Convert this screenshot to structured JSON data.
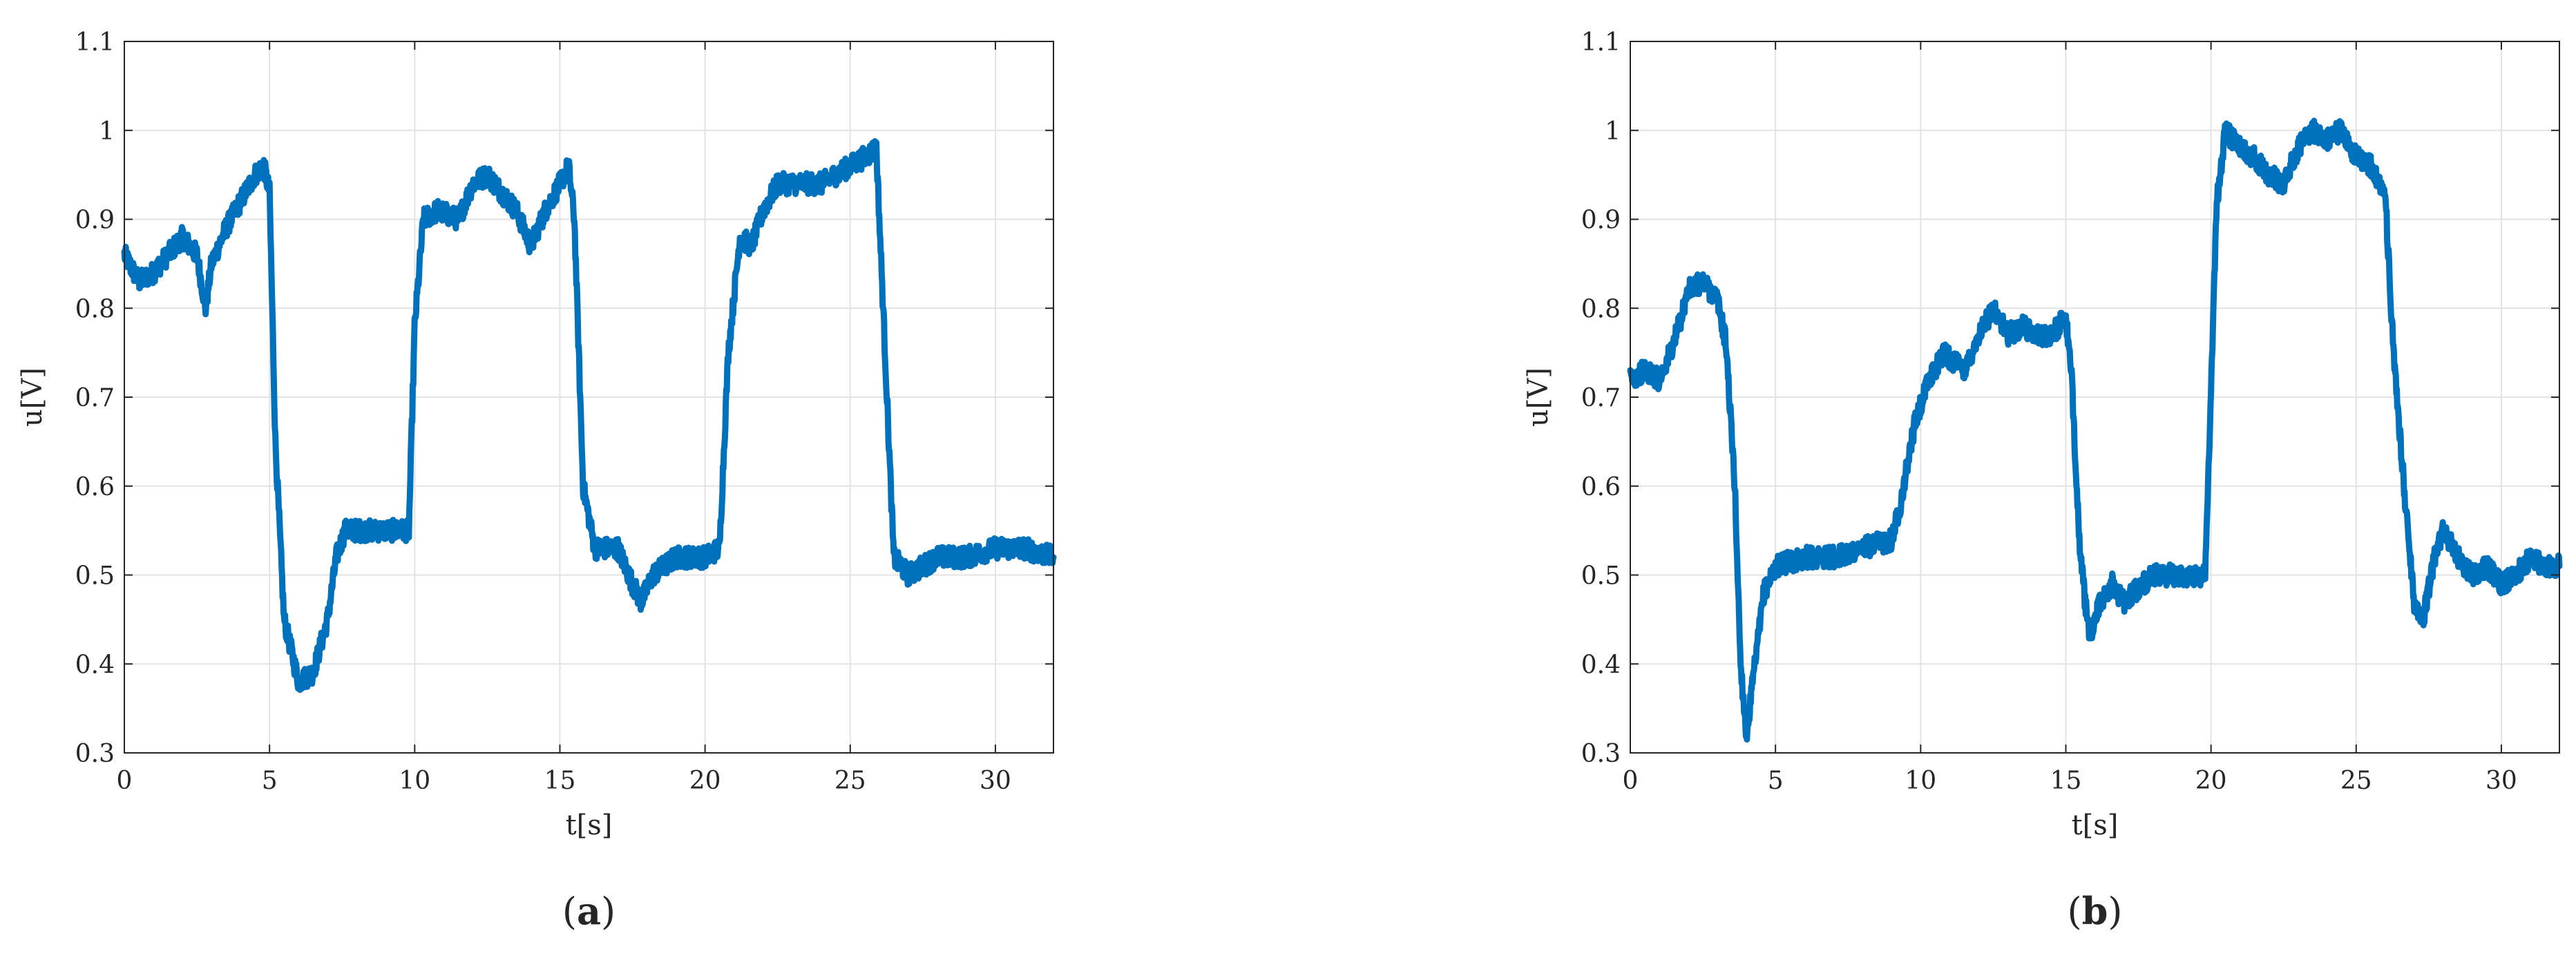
{
  "chart_data": [
    {
      "type": "line",
      "panel_label": "a",
      "title": "",
      "xlabel": "t[s]",
      "ylabel": "u[V]",
      "xlim": [
        0,
        32
      ],
      "ylim": [
        0.3,
        1.1
      ],
      "xticks": [
        "0",
        "5",
        "10",
        "15",
        "20",
        "25",
        "30"
      ],
      "yticks": [
        "0.3",
        "0.4",
        "0.5",
        "0.6",
        "0.7",
        "0.8",
        "0.9",
        "1",
        "1.1"
      ],
      "grid": true,
      "line_color": "#0072BD",
      "series": [
        {
          "x": [
            0,
            0.5,
            1,
            1.5,
            2,
            2.5,
            2.8,
            3,
            3.5,
            4,
            4.5,
            4.8,
            5,
            5.2,
            5.5,
            6,
            6.5,
            7,
            7.3,
            7.6,
            8,
            9,
            9.8,
            10,
            10.3,
            10.8,
            11.5,
            12,
            12.5,
            13,
            13.5,
            14,
            14.5,
            15,
            15.3,
            15.5,
            15.8,
            16.2,
            17,
            17.5,
            17.8,
            18.2,
            19,
            20,
            20.5,
            20.8,
            21.2,
            21.6,
            22,
            22.5,
            23,
            24,
            25,
            25.5,
            25.9,
            26.2,
            26.5,
            27,
            27.5,
            28,
            29,
            30,
            31,
            32
          ],
          "values": [
            0.86,
            0.83,
            0.84,
            0.86,
            0.88,
            0.86,
            0.8,
            0.85,
            0.89,
            0.92,
            0.95,
            0.96,
            0.93,
            0.65,
            0.45,
            0.38,
            0.39,
            0.45,
            0.52,
            0.55,
            0.55,
            0.55,
            0.55,
            0.78,
            0.9,
            0.91,
            0.9,
            0.94,
            0.95,
            0.93,
            0.91,
            0.87,
            0.91,
            0.94,
            0.96,
            0.9,
            0.6,
            0.53,
            0.53,
            0.49,
            0.47,
            0.5,
            0.52,
            0.52,
            0.53,
            0.75,
            0.88,
            0.87,
            0.91,
            0.94,
            0.94,
            0.94,
            0.96,
            0.97,
            0.98,
            0.75,
            0.52,
            0.5,
            0.51,
            0.52,
            0.52,
            0.53,
            0.53,
            0.52
          ]
        }
      ]
    },
    {
      "type": "line",
      "panel_label": "b",
      "title": "",
      "xlabel": "t[s]",
      "ylabel": "u[V]",
      "xlim": [
        0,
        32
      ],
      "ylim": [
        0.3,
        1.1
      ],
      "xticks": [
        "0",
        "5",
        "10",
        "15",
        "20",
        "25",
        "30"
      ],
      "yticks": [
        "0.3",
        "0.4",
        "0.5",
        "0.6",
        "0.7",
        "0.8",
        "0.9",
        "1",
        "1.1"
      ],
      "grid": true,
      "line_color": "#0072BD",
      "series": [
        {
          "x": [
            0,
            0.5,
            1,
            1.5,
            2,
            2.5,
            3,
            3.3,
            3.6,
            3.8,
            4,
            4.3,
            4.6,
            5,
            6,
            7,
            8,
            9,
            9.3,
            9.8,
            10.3,
            10.8,
            11.5,
            12,
            12.5,
            13,
            13.5,
            14,
            14.5,
            15,
            15.2,
            15.5,
            15.8,
            16.2,
            16.6,
            17,
            18,
            19,
            19.8,
            20.2,
            20.5,
            21,
            21.5,
            22,
            22.5,
            23,
            23.5,
            24,
            24.5,
            25,
            25.5,
            26,
            26.3,
            26.7,
            27,
            27.3,
            27.7,
            28,
            28.5,
            29,
            29.5,
            30,
            30.5,
            31,
            31.5,
            32
          ],
          "values": [
            0.72,
            0.73,
            0.72,
            0.76,
            0.82,
            0.83,
            0.81,
            0.76,
            0.6,
            0.4,
            0.32,
            0.4,
            0.48,
            0.51,
            0.52,
            0.52,
            0.53,
            0.54,
            0.58,
            0.67,
            0.72,
            0.75,
            0.73,
            0.77,
            0.8,
            0.77,
            0.78,
            0.77,
            0.77,
            0.79,
            0.72,
            0.52,
            0.43,
            0.47,
            0.49,
            0.47,
            0.5,
            0.5,
            0.5,
            0.92,
            1.0,
            0.98,
            0.97,
            0.95,
            0.94,
            0.98,
            1.0,
            0.99,
            1.0,
            0.97,
            0.96,
            0.93,
            0.74,
            0.58,
            0.47,
            0.45,
            0.52,
            0.55,
            0.52,
            0.5,
            0.51,
            0.49,
            0.5,
            0.52,
            0.51,
            0.51
          ]
        }
      ]
    }
  ]
}
